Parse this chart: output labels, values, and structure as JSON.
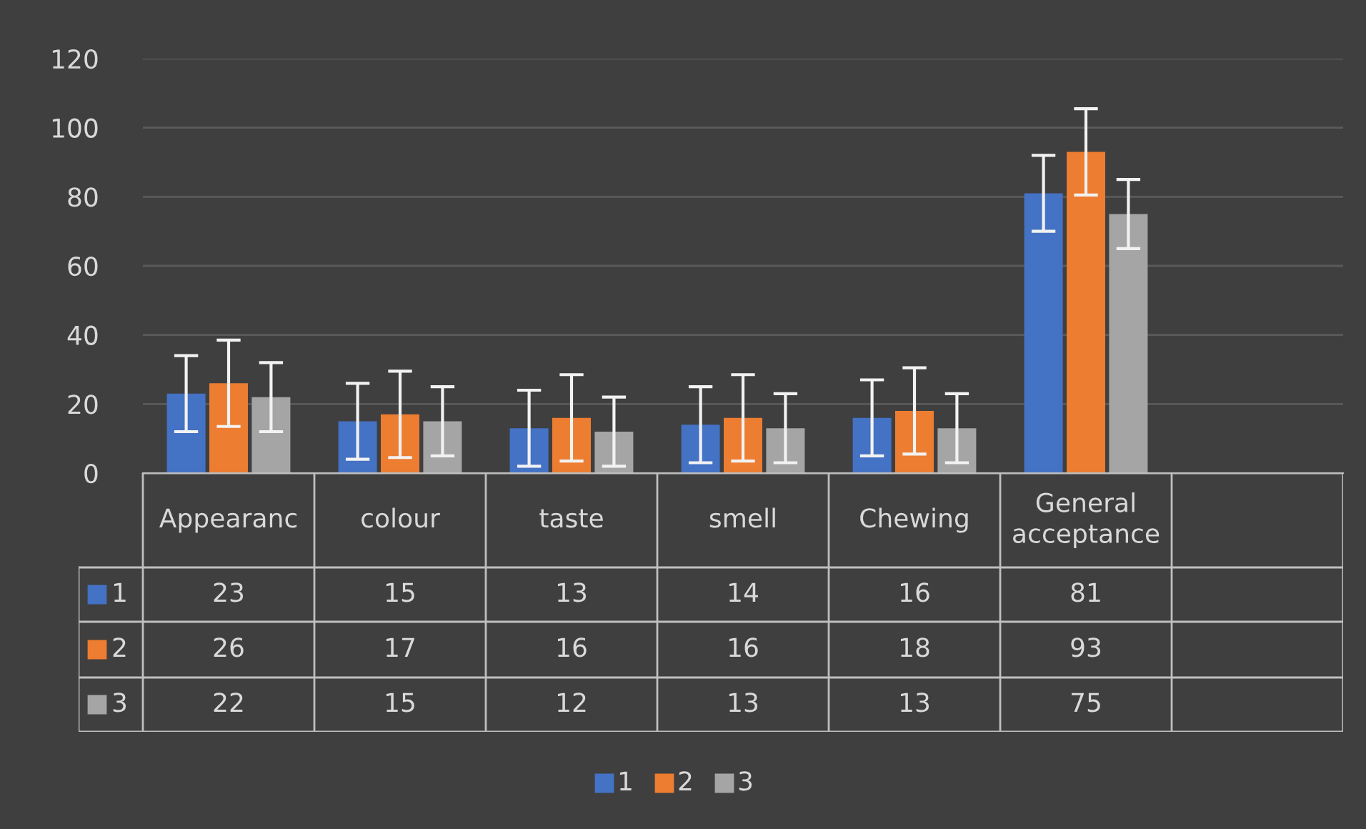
{
  "chart_data": {
    "type": "bar",
    "categories": [
      "Appearanc",
      "colour",
      "taste",
      "smell",
      "Chewing",
      "General acceptance",
      null
    ],
    "series": [
      {
        "name": "1",
        "color": "#4472c4",
        "values": [
          23,
          15,
          13,
          14,
          16,
          81,
          null
        ],
        "errors": [
          11,
          11,
          11,
          11,
          11,
          11,
          null
        ]
      },
      {
        "name": "2",
        "color": "#ed7d31",
        "values": [
          26,
          17,
          16,
          16,
          18,
          93,
          null
        ],
        "errors": [
          12.5,
          12.5,
          12.5,
          12.5,
          12.5,
          12.5,
          null
        ]
      },
      {
        "name": "3",
        "color": "#a5a5a5",
        "values": [
          22,
          15,
          12,
          13,
          13,
          75,
          null
        ],
        "errors": [
          10,
          10,
          10,
          10,
          10,
          10,
          null
        ]
      }
    ],
    "ylim": [
      0,
      120
    ],
    "yticks": [
      0,
      20,
      40,
      60,
      80,
      100,
      120
    ],
    "grid": "y",
    "data_labels": true,
    "legend": "bottom"
  }
}
